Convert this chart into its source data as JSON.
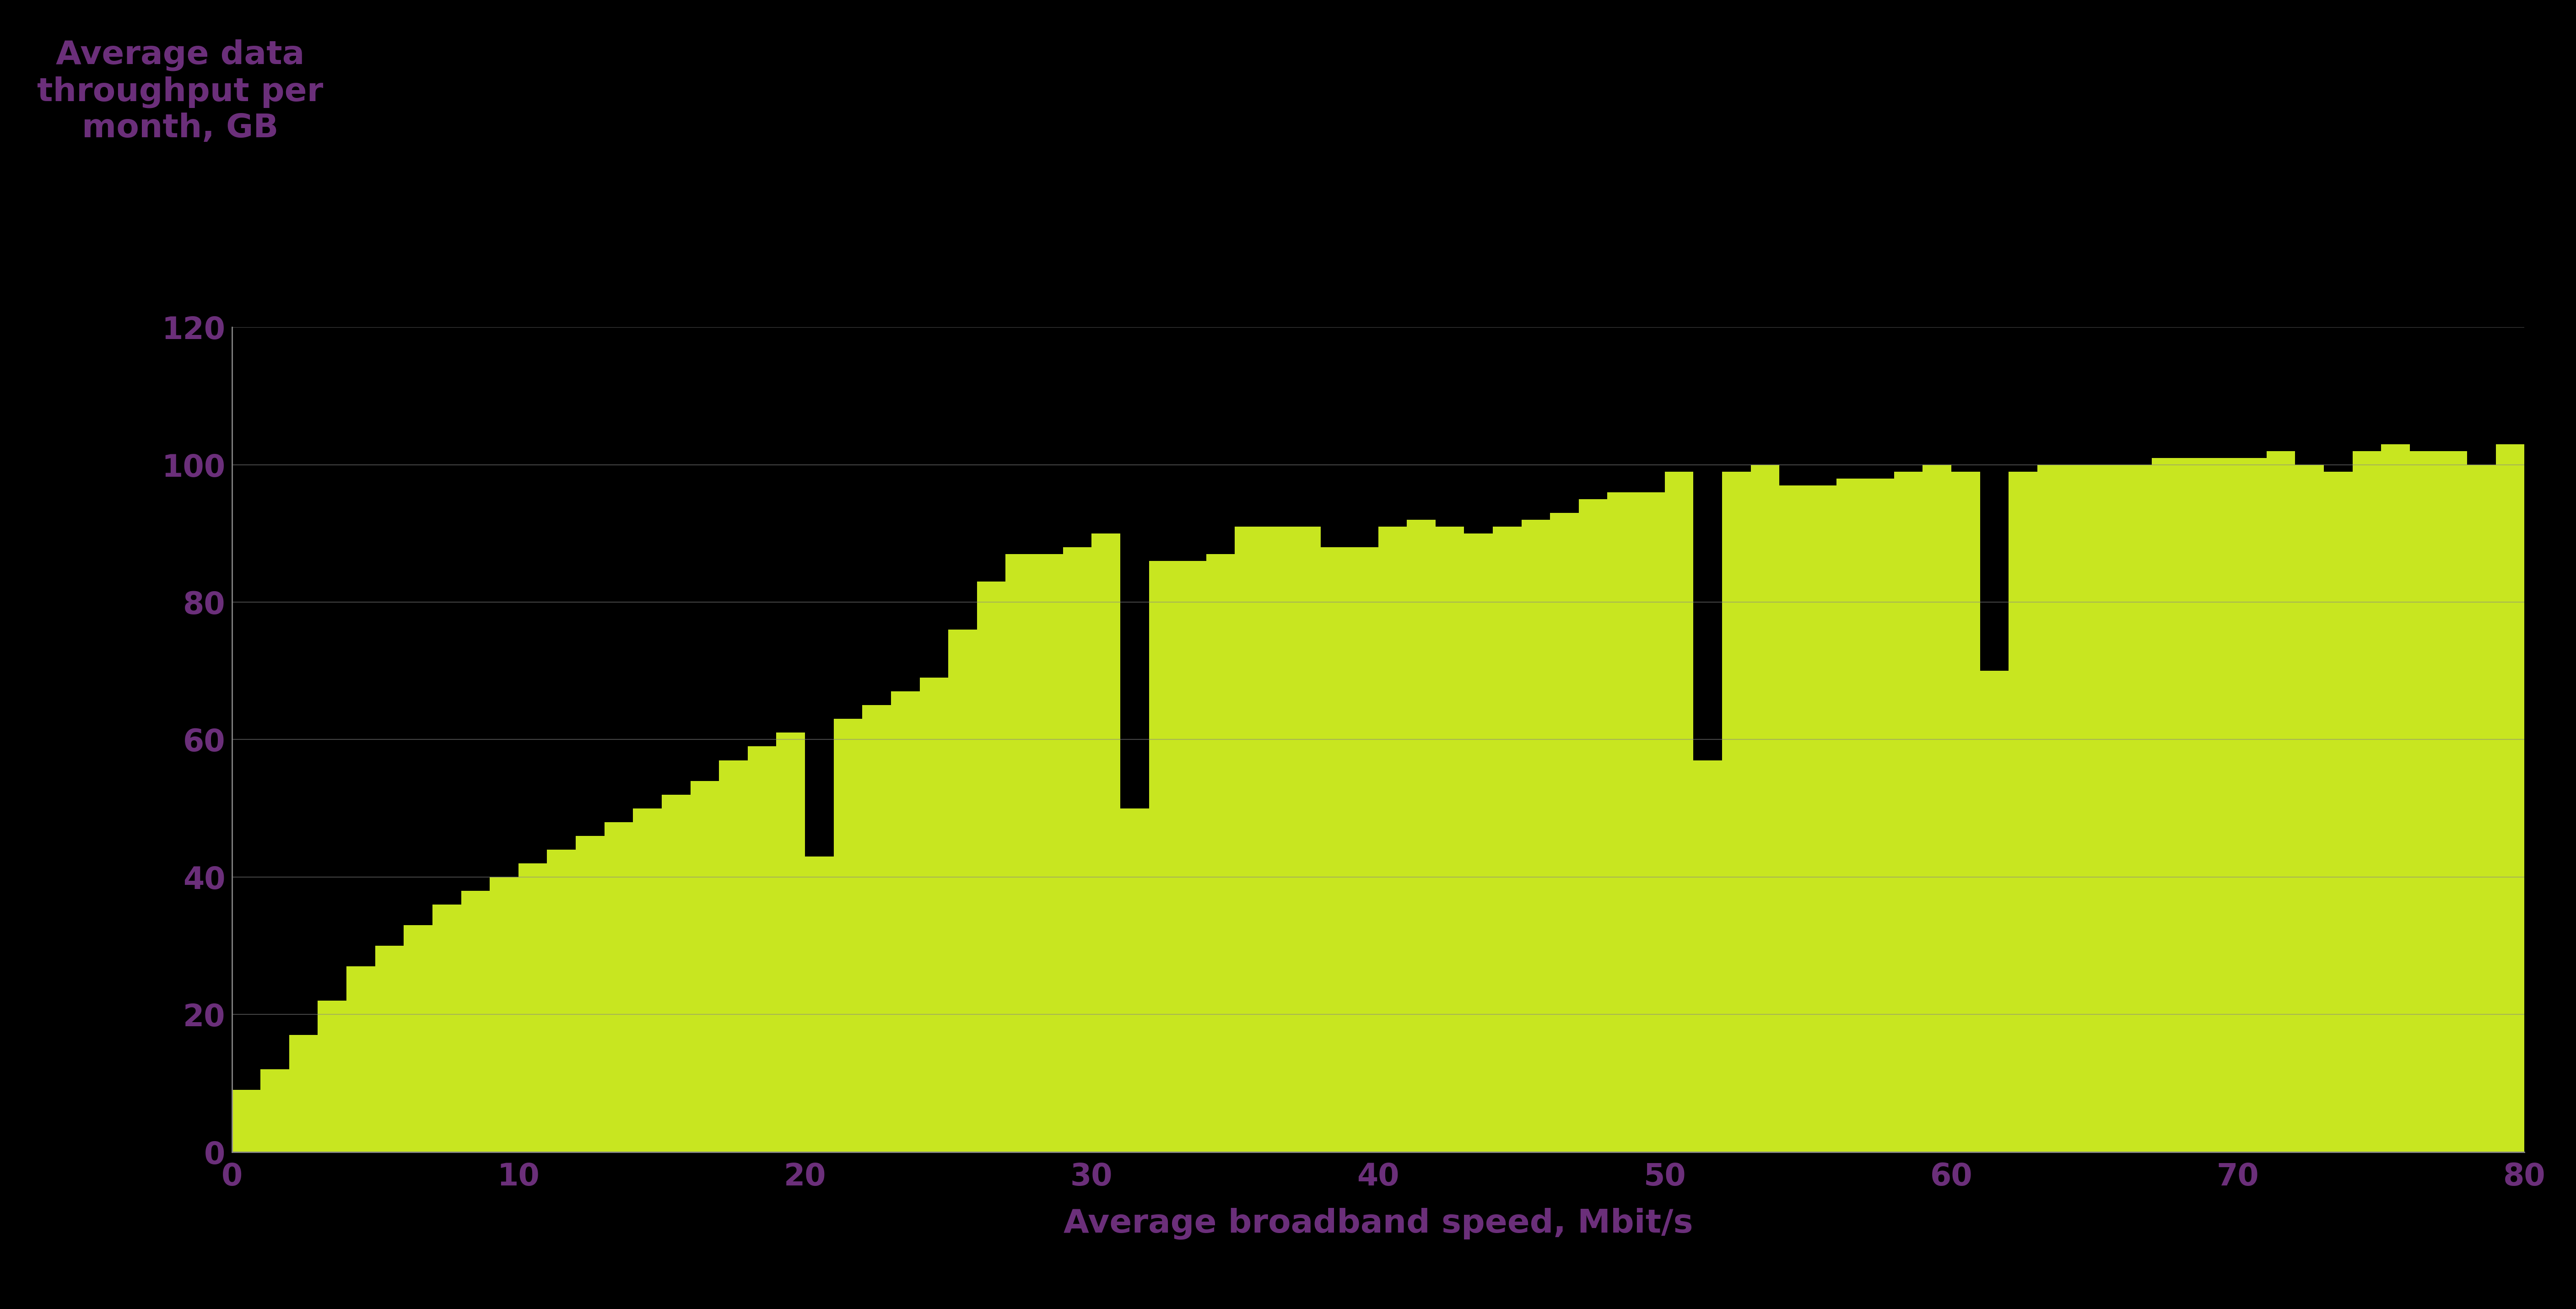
{
  "ylabel_text": "Average data\nthroughput per\nmonth, GB",
  "xlabel": "Average broadband speed, Mbit/s",
  "background_color": "#000000",
  "bar_color": "#c8e620",
  "text_color": "#6b2f7a",
  "grid_color": "#777777",
  "ylim": [
    0,
    120
  ],
  "xlim": [
    0,
    80
  ],
  "yticks": [
    0,
    20,
    40,
    60,
    80,
    100,
    120
  ],
  "xticks": [
    0,
    10,
    20,
    30,
    40,
    50,
    60,
    70,
    80
  ],
  "ylabel_fontsize": 52,
  "xlabel_fontsize": 52,
  "tick_fontsize": 48,
  "bar_values": [
    9,
    12,
    17,
    22,
    27,
    30,
    33,
    36,
    38,
    40,
    42,
    44,
    46,
    48,
    50,
    52,
    54,
    57,
    59,
    61,
    43,
    63,
    65,
    67,
    69,
    76,
    83,
    87,
    87,
    88,
    90,
    50,
    86,
    86,
    87,
    91,
    91,
    91,
    88,
    88,
    91,
    92,
    91,
    90,
    91,
    92,
    93,
    95,
    96,
    96,
    99,
    57,
    99,
    100,
    97,
    97,
    98,
    98,
    99,
    100,
    99,
    70,
    99,
    100,
    100,
    100,
    100,
    101,
    101,
    101,
    101,
    102,
    100,
    99,
    102,
    103,
    102,
    102,
    100,
    103
  ]
}
